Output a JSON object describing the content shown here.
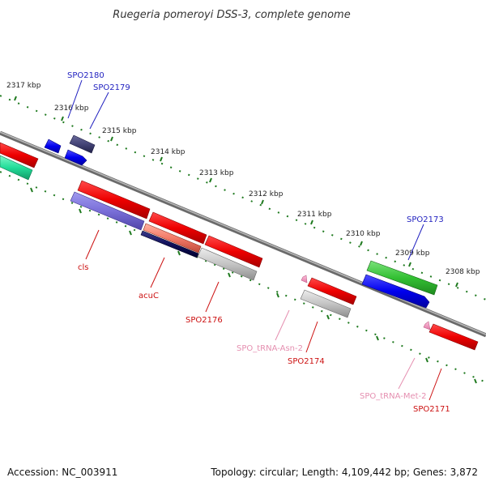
{
  "title": "Ruegeria pomeroyi DSS-3, complete genome",
  "footer": {
    "accession": "Accession: NC_003911",
    "summary": "Topology: circular; Length: 4,109,442 bp; Genes: 3,872"
  },
  "colors": {
    "backbone": "#7a7a7a",
    "tick": "#1f7a1f",
    "label_blue": "#1f1fbf",
    "label_red": "#cc1111",
    "label_pink": "#e58fb0"
  },
  "kbp_ticks": [
    "2317 kbp",
    "2316 kbp",
    "2315 kbp",
    "2314 kbp",
    "2313 kbp",
    "2312 kbp",
    "2311 kbp",
    "2310 kbp",
    "2309 kbp",
    "2308 kbp"
  ],
  "gene_labels": {
    "spo2180": "SPO2180",
    "spo2179": "SPO2179",
    "spo2173": "SPO2173",
    "cls": "cls",
    "acuc": "acuC",
    "spo2176": "SPO2176",
    "trna_asn": "SPO_tRNA-Asn-2",
    "spo2174": "SPO2174",
    "trna_met": "SPO_tRNA-Met-2",
    "spo2171": "SPO2171"
  }
}
